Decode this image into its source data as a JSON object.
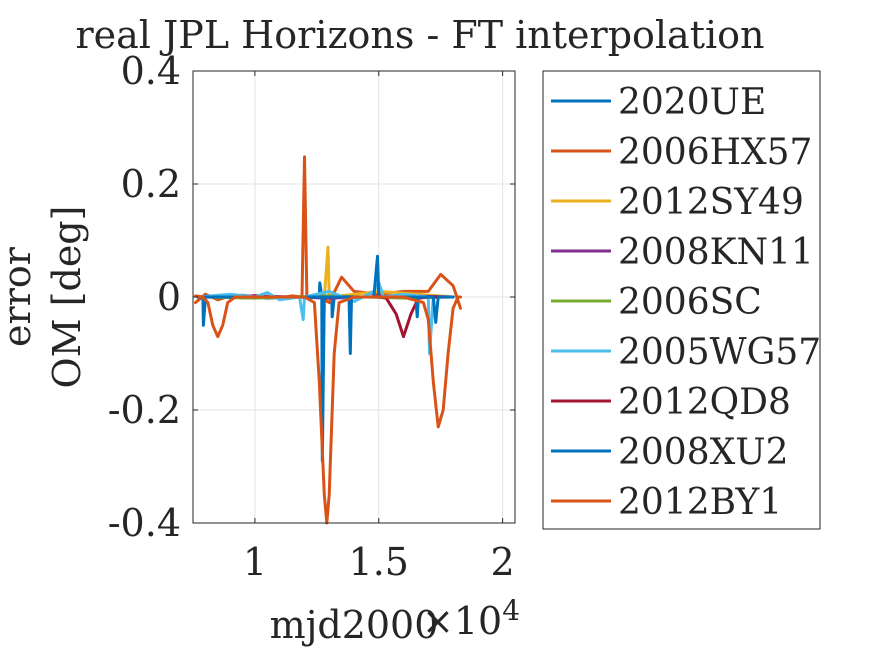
{
  "chart_data": {
    "type": "line",
    "title": "real JPL Horizons - FT interpolation",
    "xlabel": "mjd2000",
    "ylabel_lines": [
      "error",
      "OM [deg]"
    ],
    "x_exponent_label": "×10",
    "x_exponent_power": "4",
    "xlim": [
      0.75,
      2.05
    ],
    "ylim": [
      -0.4,
      0.4
    ],
    "xticks": [
      1,
      1.5,
      2
    ],
    "xtick_labels": [
      "1",
      "1.5",
      "2"
    ],
    "yticks": [
      -0.4,
      -0.2,
      0,
      0.2,
      0.4
    ],
    "ytick_labels": [
      "-0.4",
      "-0.2",
      "0",
      "0.2",
      "0.4"
    ],
    "grid": true,
    "legend_position": "outside-right",
    "series": [
      {
        "name": "2020UE",
        "color": "#0072BD",
        "x": [
          0.77,
          0.79,
          0.792,
          0.8,
          0.85,
          0.95,
          1.05,
          1.15,
          1.25,
          1.26,
          1.262,
          1.27,
          1.3,
          1.31,
          1.312,
          1.32,
          1.4,
          1.5,
          1.58,
          1.6,
          1.7,
          1.8
        ],
        "y": [
          0,
          0,
          -0.05,
          0,
          0,
          0.003,
          -0.002,
          0,
          0,
          0,
          0.025,
          0,
          0,
          0,
          -0.035,
          0,
          0,
          0,
          0,
          0,
          0,
          0
        ]
      },
      {
        "name": "2006HX57",
        "color": "#D95319",
        "x": [
          0.76,
          0.8,
          0.85,
          0.9,
          0.95,
          1.0,
          1.05,
          1.1,
          1.15,
          1.19,
          1.2,
          1.21,
          1.25,
          1.3,
          1.35,
          1.4,
          1.5,
          1.6,
          1.7,
          1.75,
          1.8,
          1.83
        ],
        "y": [
          -0.01,
          0.005,
          -0.005,
          0.002,
          -0.002,
          0.003,
          0,
          -0.002,
          0.002,
          0,
          0.248,
          0,
          0.003,
          -0.01,
          0.035,
          0.01,
          0.005,
          0.01,
          0.01,
          0.04,
          0.02,
          -0.02
        ]
      },
      {
        "name": "2012SY49",
        "color": "#EDB120",
        "x": [
          0.77,
          1.0,
          1.28,
          1.295,
          1.3,
          1.31,
          1.5,
          1.8
        ],
        "y": [
          0,
          0,
          0,
          0.088,
          0,
          0,
          0.01,
          0
        ]
      },
      {
        "name": "2008KN11",
        "color": "#7E2F8E",
        "x": [
          0.77,
          1.0,
          1.3,
          1.6,
          1.8
        ],
        "y": [
          0,
          0.002,
          -0.002,
          0.002,
          0
        ]
      },
      {
        "name": "2006SC",
        "color": "#77AC30",
        "x": [
          0.77,
          1.0,
          1.3,
          1.6,
          1.8
        ],
        "y": [
          0,
          -0.002,
          0.002,
          -0.002,
          0
        ]
      },
      {
        "name": "2005WG57",
        "color": "#4DBEEE",
        "x": [
          0.77,
          0.9,
          1.0,
          1.05,
          1.1,
          1.18,
          1.195,
          1.2,
          1.3,
          1.4,
          1.48,
          1.5,
          1.52,
          1.6,
          1.7,
          1.705,
          1.72,
          1.8
        ],
        "y": [
          0,
          0.005,
          0,
          0.008,
          -0.005,
          0,
          -0.04,
          0,
          0.01,
          -0.008,
          0.01,
          0.025,
          0,
          0.005,
          0,
          -0.1,
          0,
          0
        ]
      },
      {
        "name": "2012QD8",
        "color": "#A2142F",
        "x": [
          0.77,
          1.0,
          1.5,
          1.53,
          1.57,
          1.6,
          1.63,
          1.66,
          1.7,
          1.8
        ],
        "y": [
          0,
          0,
          0,
          -0.002,
          -0.03,
          -0.07,
          -0.03,
          -0.002,
          0,
          0
        ]
      },
      {
        "name": "2008XU2",
        "color": "#0072BD",
        "x": [
          0.77,
          1.2,
          1.25,
          1.27,
          1.272,
          1.28,
          1.38,
          1.385,
          1.39,
          1.48,
          1.495,
          1.5,
          1.65,
          1.655,
          1.66,
          1.72,
          1.73,
          1.74,
          1.8
        ],
        "y": [
          0,
          0,
          0,
          0,
          -0.29,
          0,
          0,
          -0.1,
          0,
          0,
          0.072,
          0,
          0,
          -0.035,
          0,
          0,
          -0.045,
          0,
          0
        ]
      },
      {
        "name": "2012BY1",
        "color": "#D95319",
        "x": [
          0.76,
          0.79,
          0.81,
          0.83,
          0.85,
          0.87,
          0.89,
          0.92,
          1.0,
          1.1,
          1.2,
          1.24,
          1.26,
          1.28,
          1.29,
          1.3,
          1.32,
          1.34,
          1.4,
          1.5,
          1.6,
          1.68,
          1.7,
          1.72,
          1.74,
          1.76,
          1.78,
          1.8,
          1.82,
          1.83
        ],
        "y": [
          0.002,
          0,
          -0.01,
          -0.05,
          -0.07,
          -0.05,
          -0.01,
          0,
          0,
          0,
          0,
          -0.01,
          -0.15,
          -0.35,
          -0.4,
          -0.35,
          -0.1,
          -0.01,
          0,
          0,
          0,
          -0.01,
          -0.04,
          -0.15,
          -0.23,
          -0.2,
          -0.1,
          -0.02,
          0,
          0
        ]
      }
    ]
  }
}
